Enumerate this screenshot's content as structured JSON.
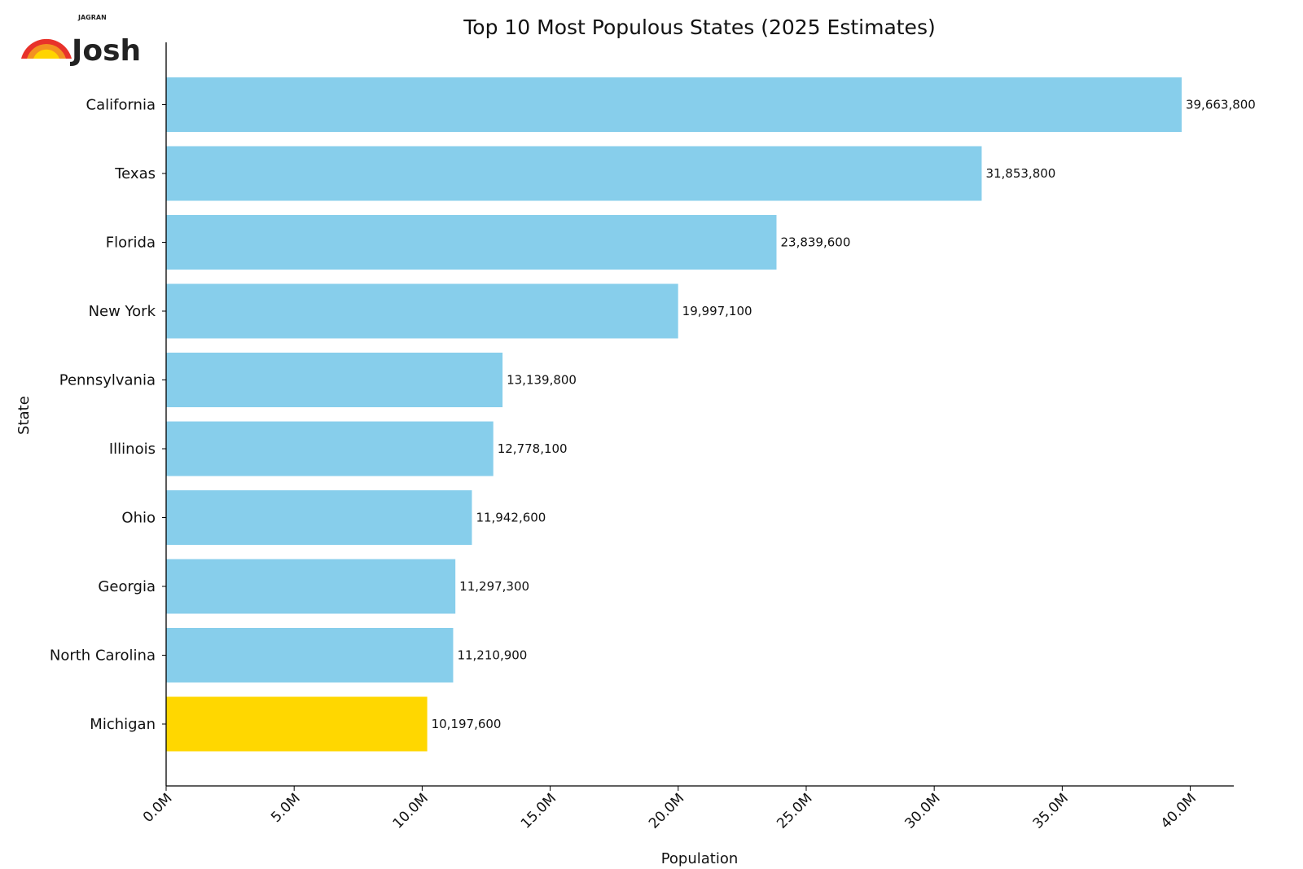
{
  "logo": {
    "small_text": "JAGRAN",
    "brand_text": "Josh"
  },
  "chart_data": {
    "type": "bar",
    "orientation": "horizontal",
    "title": "Top 10 Most Populous States (2025 Estimates)",
    "xlabel": "Population",
    "ylabel": "State",
    "categories": [
      "California",
      "Texas",
      "Florida",
      "New York",
      "Pennsylvania",
      "Illinois",
      "Ohio",
      "Georgia",
      "North Carolina",
      "Michigan"
    ],
    "values": [
      39663800,
      31853800,
      23839600,
      19997100,
      13139800,
      12778100,
      11942600,
      11297300,
      11210900,
      10197600
    ],
    "data_labels": [
      "39,663,800",
      "31,853,800",
      "23,839,600",
      "19,997,100",
      "13,139,800",
      "12,778,100",
      "11,942,600",
      "11,297,300",
      "11,210,900",
      "10,197,600"
    ],
    "xticks": [
      0,
      5000000,
      10000000,
      15000000,
      20000000,
      25000000,
      30000000,
      35000000,
      40000000
    ],
    "xtick_labels": [
      "0.0M",
      "5.0M",
      "10.0M",
      "15.0M",
      "20.0M",
      "25.0M",
      "30.0M",
      "35.0M",
      "40.0M"
    ],
    "xlim": [
      0,
      41700000
    ],
    "grid": false,
    "colors": {
      "default": "#87CEEB",
      "highlight": "#FFD700",
      "highlight_category": "Michigan"
    }
  }
}
